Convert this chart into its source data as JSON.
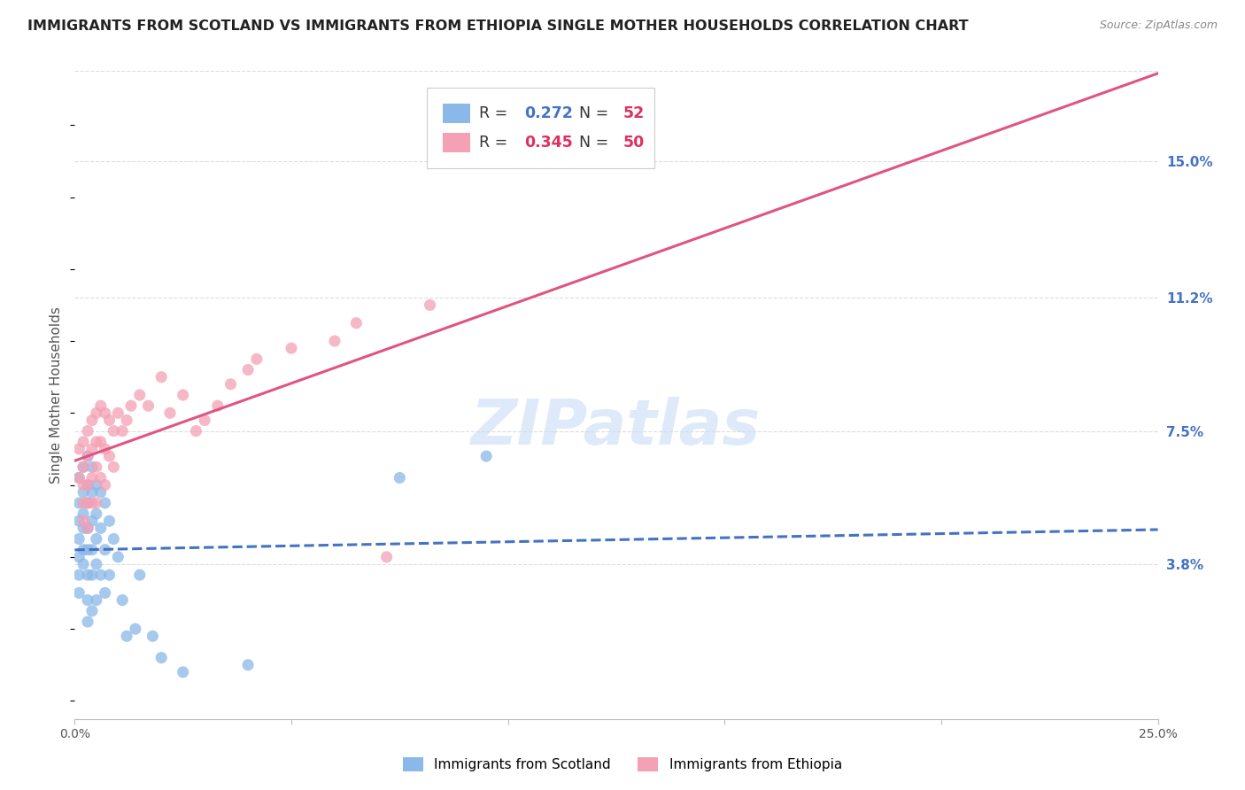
{
  "title": "IMMIGRANTS FROM SCOTLAND VS IMMIGRANTS FROM ETHIOPIA SINGLE MOTHER HOUSEHOLDS CORRELATION CHART",
  "source": "Source: ZipAtlas.com",
  "ylabel": "Single Mother Households",
  "xlim": [
    0.0,
    0.25
  ],
  "ylim": [
    -0.005,
    0.175
  ],
  "xtick_positions": [
    0.0,
    0.05,
    0.1,
    0.15,
    0.2,
    0.25
  ],
  "xticklabels": [
    "0.0%",
    "",
    "",
    "",
    "",
    "25.0%"
  ],
  "ytick_positions": [
    0.038,
    0.075,
    0.112,
    0.15
  ],
  "ytick_labels": [
    "3.8%",
    "7.5%",
    "11.2%",
    "15.0%"
  ],
  "scotland_color": "#8ab8e8",
  "ethiopia_color": "#f4a0b5",
  "scotland_trend_color": "#3355aa",
  "ethiopia_trend_color": "#e05580",
  "scotland_R": "0.272",
  "scotland_N": "52",
  "ethiopia_R": "0.345",
  "ethiopia_N": "50",
  "scotland_x": [
    0.001,
    0.001,
    0.001,
    0.001,
    0.001,
    0.001,
    0.001,
    0.002,
    0.002,
    0.002,
    0.002,
    0.002,
    0.002,
    0.003,
    0.003,
    0.003,
    0.003,
    0.003,
    0.003,
    0.003,
    0.003,
    0.004,
    0.004,
    0.004,
    0.004,
    0.004,
    0.004,
    0.005,
    0.005,
    0.005,
    0.005,
    0.005,
    0.006,
    0.006,
    0.006,
    0.007,
    0.007,
    0.007,
    0.008,
    0.008,
    0.009,
    0.01,
    0.011,
    0.012,
    0.014,
    0.015,
    0.018,
    0.02,
    0.025,
    0.04,
    0.075,
    0.095
  ],
  "scotland_y": [
    0.062,
    0.055,
    0.05,
    0.045,
    0.04,
    0.035,
    0.03,
    0.065,
    0.058,
    0.052,
    0.048,
    0.042,
    0.038,
    0.068,
    0.06,
    0.055,
    0.048,
    0.042,
    0.035,
    0.028,
    0.022,
    0.065,
    0.058,
    0.05,
    0.042,
    0.035,
    0.025,
    0.06,
    0.052,
    0.045,
    0.038,
    0.028,
    0.058,
    0.048,
    0.035,
    0.055,
    0.042,
    0.03,
    0.05,
    0.035,
    0.045,
    0.04,
    0.028,
    0.018,
    0.02,
    0.035,
    0.018,
    0.012,
    0.008,
    0.01,
    0.062,
    0.068
  ],
  "ethiopia_x": [
    0.001,
    0.001,
    0.002,
    0.002,
    0.002,
    0.002,
    0.002,
    0.003,
    0.003,
    0.003,
    0.003,
    0.003,
    0.004,
    0.004,
    0.004,
    0.004,
    0.005,
    0.005,
    0.005,
    0.005,
    0.006,
    0.006,
    0.006,
    0.007,
    0.007,
    0.007,
    0.008,
    0.008,
    0.009,
    0.009,
    0.01,
    0.011,
    0.012,
    0.013,
    0.015,
    0.017,
    0.02,
    0.022,
    0.025,
    0.028,
    0.03,
    0.033,
    0.036,
    0.04,
    0.042,
    0.05,
    0.06,
    0.065,
    0.072,
    0.082
  ],
  "ethiopia_y": [
    0.07,
    0.062,
    0.072,
    0.065,
    0.06,
    0.055,
    0.05,
    0.075,
    0.068,
    0.06,
    0.055,
    0.048,
    0.078,
    0.07,
    0.062,
    0.055,
    0.08,
    0.072,
    0.065,
    0.055,
    0.082,
    0.072,
    0.062,
    0.08,
    0.07,
    0.06,
    0.078,
    0.068,
    0.075,
    0.065,
    0.08,
    0.075,
    0.078,
    0.082,
    0.085,
    0.082,
    0.09,
    0.08,
    0.085,
    0.075,
    0.078,
    0.082,
    0.088,
    0.092,
    0.095,
    0.098,
    0.1,
    0.105,
    0.04,
    0.11
  ],
  "watermark_text": "ZIPatlas",
  "background_color": "#ffffff",
  "grid_color": "#dddddd",
  "right_label_color": "#4472c4",
  "title_color": "#222222"
}
